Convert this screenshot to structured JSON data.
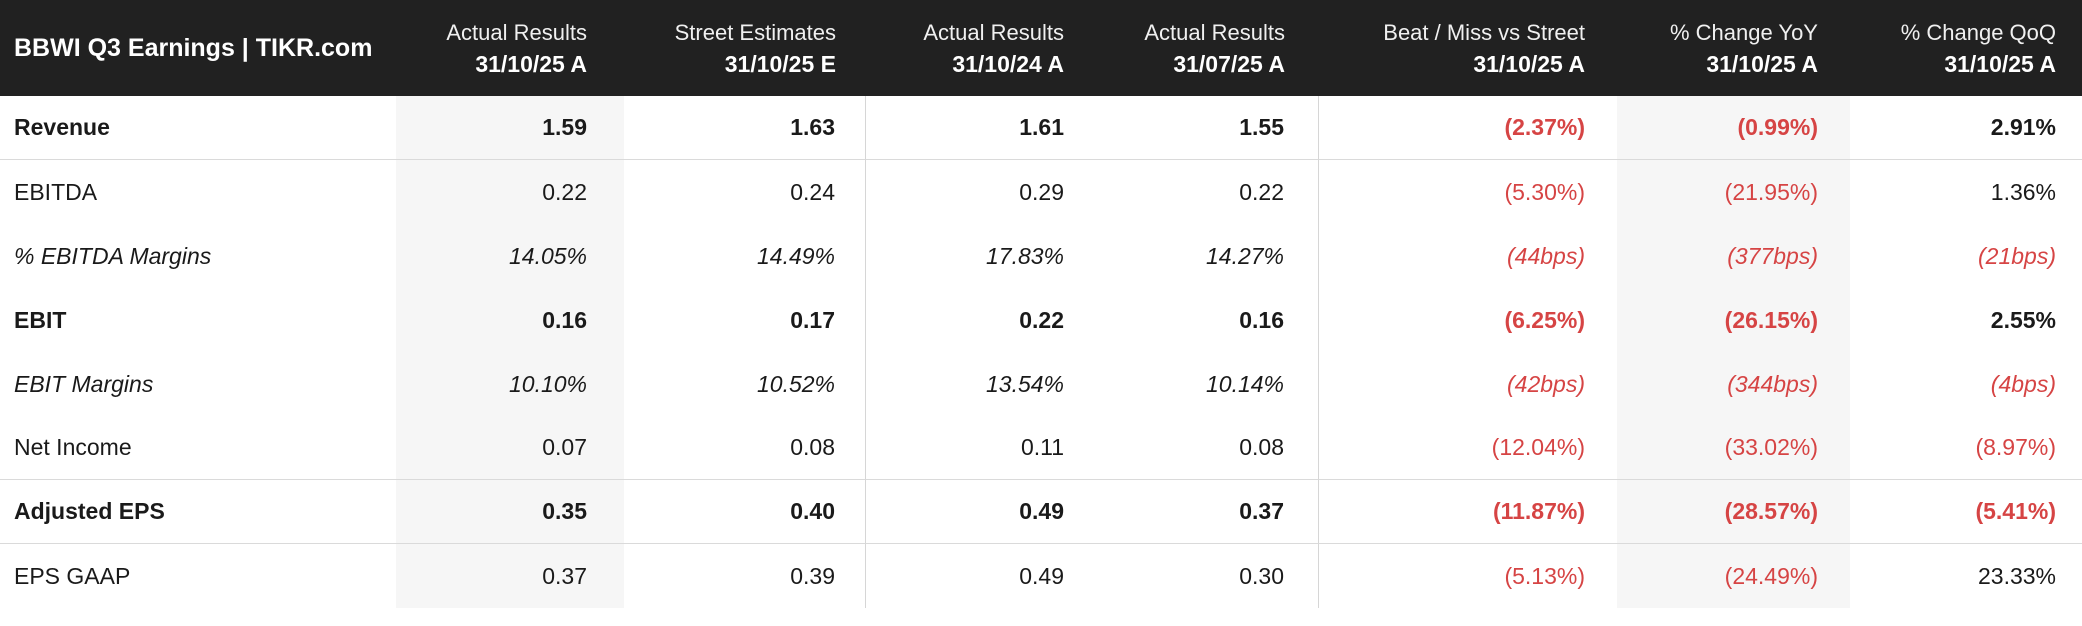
{
  "title": "BBWI Q3 Earnings | TIKR.com",
  "header": {
    "columns": [
      {
        "line1": "Actual Results",
        "line2": "31/10/25 A"
      },
      {
        "line1": "Street Estimates",
        "line2": "31/10/25 E"
      },
      {
        "line1": "Actual Results",
        "line2": "31/10/24 A"
      },
      {
        "line1": "Actual Results",
        "line2": "31/07/25 A"
      },
      {
        "line1": "Beat / Miss vs Street",
        "line2": "31/10/25 A"
      },
      {
        "line1": "% Change YoY",
        "line2": "31/10/25 A"
      },
      {
        "line1": "% Change QoQ",
        "line2": "31/10/25 A"
      }
    ]
  },
  "colors": {
    "header_bg": "#212121",
    "header_text": "#ffffff",
    "negative_red": "#d64444",
    "shaded_column_bg": "#f6f6f6",
    "divider": "#d6d6d6"
  },
  "chart_data": {
    "type": "table",
    "title": "BBWI Q3 Earnings | TIKR.com",
    "column_headers": [
      "Actual Results 31/10/25 A",
      "Street Estimates 31/10/25 E",
      "Actual Results 31/10/24 A",
      "Actual Results 31/07/25 A",
      "Beat / Miss vs Street 31/10/25 A",
      "% Change YoY 31/10/25 A",
      "% Change QoQ 31/10/25 A"
    ],
    "rows": [
      {
        "label": "Revenue",
        "emphasis": "bold",
        "cells": [
          "1.59",
          "1.63",
          "1.61",
          "1.55",
          "(2.37%)",
          "(0.99%)",
          "2.91%"
        ]
      },
      {
        "label": "EBITDA",
        "emphasis": "regular",
        "cells": [
          "0.22",
          "0.24",
          "0.29",
          "0.22",
          "(5.30%)",
          "(21.95%)",
          "1.36%"
        ]
      },
      {
        "label": "% EBITDA Margins",
        "emphasis": "italic",
        "cells": [
          "14.05%",
          "14.49%",
          "17.83%",
          "14.27%",
          "(44bps)",
          "(377bps)",
          "(21bps)"
        ]
      },
      {
        "label": "EBIT",
        "emphasis": "bold",
        "cells": [
          "0.16",
          "0.17",
          "0.22",
          "0.16",
          "(6.25%)",
          "(26.15%)",
          "2.55%"
        ]
      },
      {
        "label": "EBIT Margins",
        "emphasis": "italic",
        "cells": [
          "10.10%",
          "10.52%",
          "13.54%",
          "10.14%",
          "(42bps)",
          "(344bps)",
          "(4bps)"
        ]
      },
      {
        "label": "Net Income",
        "emphasis": "regular",
        "cells": [
          "0.07",
          "0.08",
          "0.11",
          "0.08",
          "(12.04%)",
          "(33.02%)",
          "(8.97%)"
        ]
      },
      {
        "label": "Adjusted EPS",
        "emphasis": "bold",
        "cells": [
          "0.35",
          "0.40",
          "0.49",
          "0.37",
          "(11.87%)",
          "(28.57%)",
          "(5.41%)"
        ]
      },
      {
        "label": "EPS GAAP",
        "emphasis": "regular",
        "cells": [
          "0.37",
          "0.39",
          "0.49",
          "0.30",
          "(5.13%)",
          "(24.49%)",
          "23.33%"
        ]
      }
    ]
  }
}
